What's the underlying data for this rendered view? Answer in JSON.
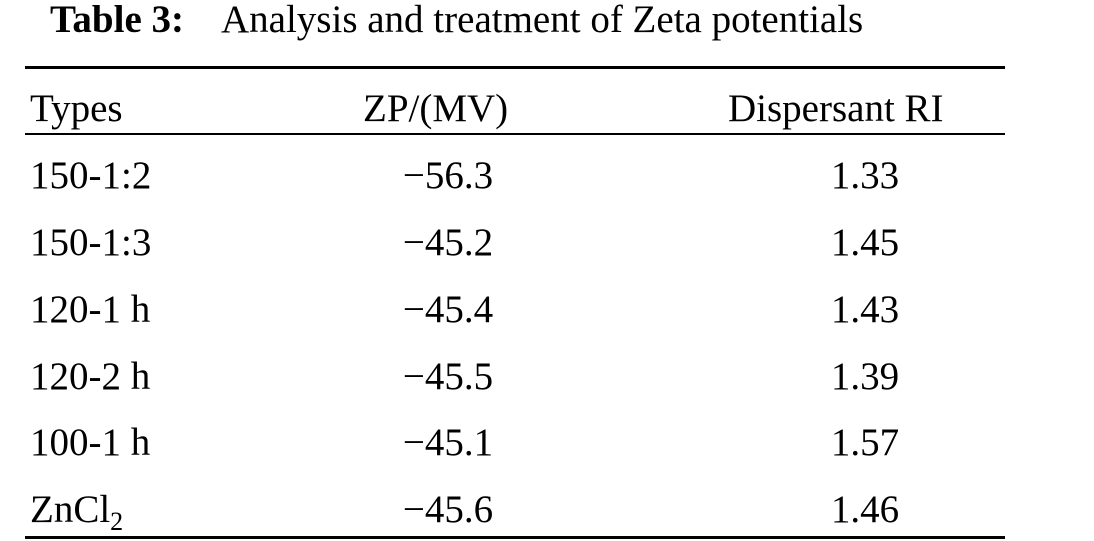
{
  "caption": {
    "label": "Table 3:",
    "text": "Analysis and treatment of Zeta potentials"
  },
  "table": {
    "headers": [
      "Types",
      "ZP/(MV)",
      "Dispersant RI"
    ],
    "rows": [
      {
        "type": "150-1:2",
        "zp": "−56.3",
        "ri": "1.33"
      },
      {
        "type": "150-1:3",
        "zp": "−45.2",
        "ri": "1.45"
      },
      {
        "type": "120-1 h",
        "zp": "−45.4",
        "ri": "1.43"
      },
      {
        "type": "120-2 h",
        "zp": "−45.5",
        "ri": "1.39"
      },
      {
        "type": "100-1 h",
        "zp": "−45.1",
        "ri": "1.57"
      },
      {
        "type_main": "ZnCl",
        "type_sub": "2",
        "zp": "−45.6",
        "ri": "1.46"
      }
    ]
  }
}
